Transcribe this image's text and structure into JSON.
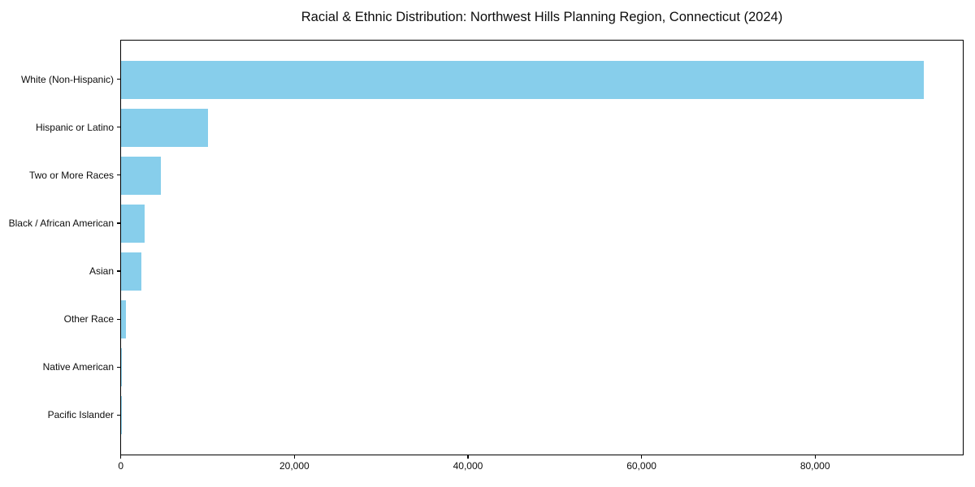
{
  "title": "Racial & Ethnic Distribution: Northwest Hills Planning Region, Connecticut (2024)",
  "chart_data": {
    "type": "bar",
    "orientation": "horizontal",
    "title": "Racial & Ethnic Distribution: Northwest Hills Planning Region, Connecticut (2024)",
    "categories": [
      "White (Non-Hispanic)",
      "Hispanic or Latino",
      "Two or More Races",
      "Black / African American",
      "Asian",
      "Other Race",
      "Native American",
      "Pacific Islander"
    ],
    "values": [
      92500,
      10000,
      4600,
      2700,
      2350,
      600,
      90,
      30
    ],
    "bar_color": "#87CEEB",
    "xlabel": "",
    "ylabel": "",
    "xlim": [
      0,
      97000
    ],
    "x_ticks": [
      0,
      20000,
      40000,
      60000,
      80000
    ],
    "x_tick_labels": [
      "0",
      "20,000",
      "40,000",
      "60,000",
      "80,000"
    ],
    "grid": false,
    "legend": false
  }
}
